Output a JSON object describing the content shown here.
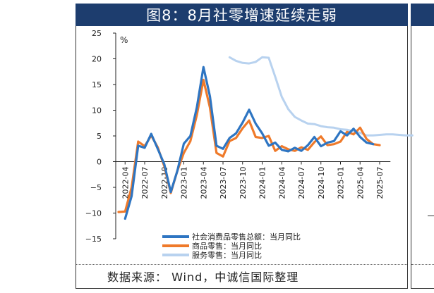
{
  "title": "图8：8月社零增速延续走弱",
  "source": "数据来源：  Wind，中诚信国际整理",
  "chart_data": {
    "type": "line",
    "unit_label": "%",
    "ylim": [
      -15,
      25
    ],
    "yticks": [
      25,
      20,
      15,
      10,
      5,
      0,
      -5,
      -10,
      -15
    ],
    "x_tick_labels": [
      "2022-04",
      "2022-07",
      "2022-10",
      "2023-01",
      "2023-04",
      "2023-07",
      "2023-10",
      "2024-01",
      "2024-04",
      "2024-07",
      "2024-10",
      "2025-01",
      "2025-04",
      "2025-07"
    ],
    "x_start": "2022-03",
    "legend": [
      "社会消费品零售总额：当月同比",
      "商品零售：当月同比",
      "服务零售：当月同比"
    ],
    "legend_position": "bottom-left",
    "colors": {
      "total": "#2e75c2",
      "goods": "#ef7a2a",
      "services": "#b8d2ef"
    },
    "series": [
      {
        "name": "社会消费品零售总额：当月同比",
        "start": "2022-04",
        "values": [
          -11.1,
          -6.7,
          3.1,
          2.7,
          5.4,
          2.5,
          -0.5,
          -5.9,
          -1.8,
          3.5,
          5,
          10.6,
          18.4,
          12.7,
          3.1,
          2.5,
          4.6,
          5.5,
          7.6,
          10.1,
          7.4,
          5.5,
          3.1,
          3.7,
          2.3,
          2,
          2.7,
          2.1,
          3.2,
          4.8,
          3,
          3.7,
          4,
          5.9,
          5.1,
          6.4,
          4.8,
          3.7,
          3.4
        ]
      },
      {
        "name": "商品零售：当月同比",
        "start": "2022-03",
        "values": [
          -9.8,
          -9.7,
          -5,
          3.9,
          3,
          5.1,
          2.8,
          -0.9,
          -6.1,
          -1.8,
          1.7,
          4,
          9.1,
          15.9,
          10.5,
          1.7,
          1,
          4,
          4.6,
          6.5,
          8,
          4.8,
          4.6,
          5,
          2.1,
          3,
          2.4,
          2.1,
          2.8,
          2.3,
          3.8,
          4.9,
          3.2,
          3.4,
          3.9,
          5.8,
          5.3,
          6.6,
          4.4,
          3.4,
          3.2
        ]
      },
      {
        "name": "服务零售：当月同比",
        "start": "2023-08",
        "values": [
          20.3,
          19.6,
          19.2,
          19.1,
          19.4,
          20.3,
          20.2,
          16.5,
          12.6,
          10.2,
          8.7,
          8,
          7.4,
          7.3,
          6.9,
          6.7,
          6.6,
          6.3,
          6.2,
          5.9,
          5.6,
          5.1,
          5.1,
          5.2,
          5.3,
          5.3,
          5.2,
          5.1,
          5.1
        ]
      }
    ]
  }
}
